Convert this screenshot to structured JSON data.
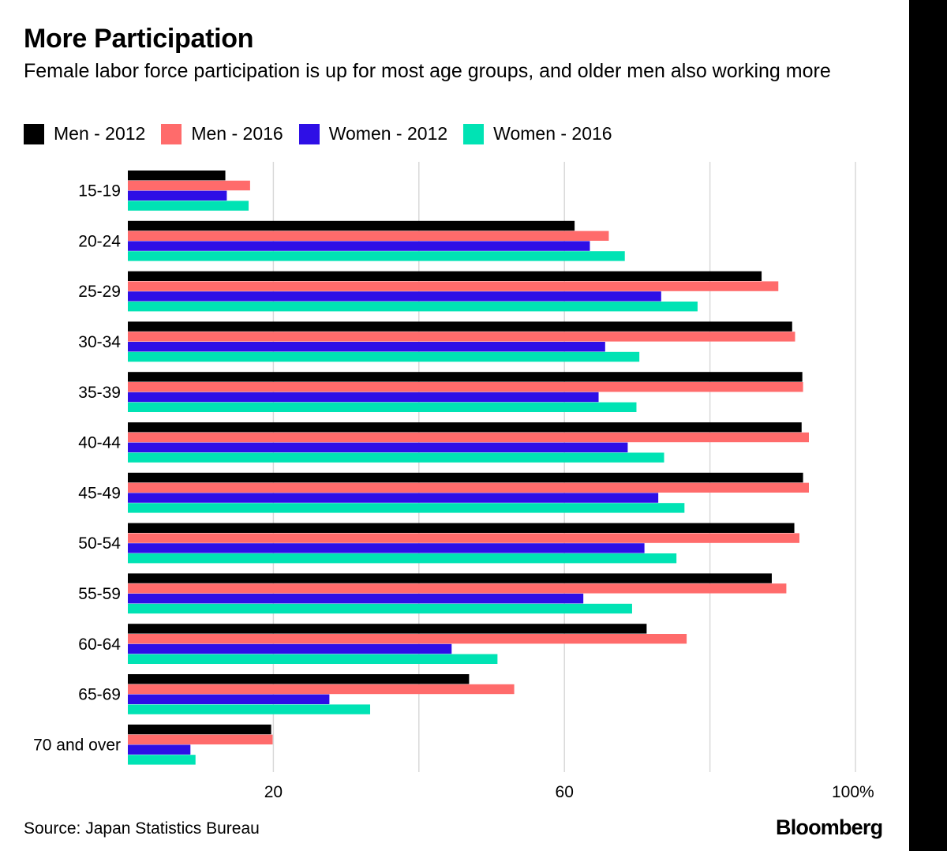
{
  "title": "More Participation",
  "subtitle": "Female labor force participation is up for most age groups, and older men also working more",
  "source": "Source: Japan Statistics Bureau",
  "logo": "Bloomberg",
  "colors": {
    "men_2012": "#000000",
    "men_2016": "#ff6b6b",
    "women_2012": "#2e0fe6",
    "women_2016": "#00e3b4",
    "grid": "#d9d9d9"
  },
  "chart_data": {
    "type": "bar",
    "orientation": "horizontal",
    "categories": [
      "15-19",
      "20-24",
      "25-29",
      "30-34",
      "35-39",
      "40-44",
      "45-49",
      "50-54",
      "55-59",
      "60-64",
      "65-69",
      "70 and over"
    ],
    "series": [
      {
        "name": "Men - 2012",
        "color": "#000000",
        "values": [
          13.4,
          61.4,
          87.1,
          91.3,
          92.7,
          92.6,
          92.8,
          91.6,
          88.5,
          71.3,
          46.9,
          19.7
        ]
      },
      {
        "name": "Men - 2016",
        "color": "#ff6b6b",
        "values": [
          16.8,
          66.1,
          89.4,
          91.7,
          92.8,
          93.6,
          93.6,
          92.3,
          90.5,
          76.8,
          53.1,
          19.9
        ]
      },
      {
        "name": "Women - 2012",
        "color": "#2e0fe6",
        "values": [
          13.6,
          63.5,
          73.3,
          65.6,
          64.7,
          68.7,
          72.9,
          71.0,
          62.6,
          44.5,
          27.7,
          8.6
        ]
      },
      {
        "name": "Women - 2016",
        "color": "#00e3b4",
        "values": [
          16.6,
          68.3,
          78.3,
          70.3,
          69.9,
          73.7,
          76.5,
          75.4,
          69.3,
          50.8,
          33.3,
          9.3
        ]
      }
    ],
    "xlim": [
      0,
      100
    ],
    "x_ticks": [
      {
        "value": 20,
        "label": "20"
      },
      {
        "value": 60,
        "label": "60"
      },
      {
        "value": 100,
        "label": "100%"
      }
    ],
    "grid_values": [
      20,
      40,
      60,
      80,
      100
    ],
    "grid": true,
    "legend": "top-left"
  }
}
